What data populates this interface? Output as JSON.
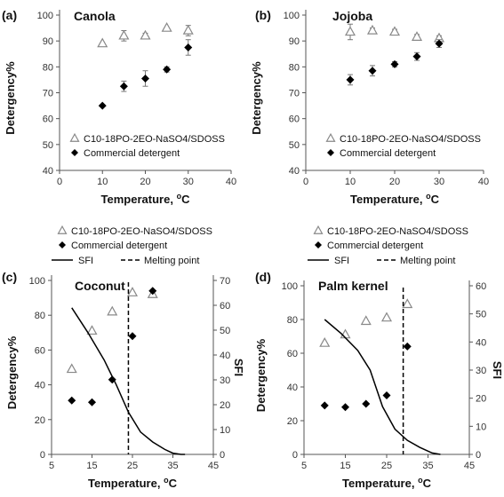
{
  "chart_data": [
    {
      "type": "scatter",
      "panel_label": "(a)",
      "title": "Canola",
      "xlabel": "Temperature, oC",
      "ylabel": "Detergency%",
      "xlim": [
        0,
        40
      ],
      "ylim": [
        40,
        100
      ],
      "xticks": [
        "0",
        "10",
        "20",
        "30",
        "40"
      ],
      "yticks": [
        "40",
        "50",
        "60",
        "70",
        "80",
        "90",
        "100"
      ],
      "legend_position": "lower-center",
      "series": [
        {
          "name": "C10-18PO-2EO-NaSO4/SDOSS",
          "marker": "open-triangle",
          "x": [
            10,
            15,
            20,
            25,
            30
          ],
          "y": [
            89,
            92,
            92,
            95,
            94
          ],
          "err": [
            0,
            2,
            1,
            0,
            2
          ]
        },
        {
          "name": "Commercial detergent",
          "marker": "filled-diamond",
          "x": [
            10,
            15,
            20,
            25,
            30
          ],
          "y": [
            65,
            72.5,
            75.5,
            79,
            87.5
          ],
          "err": [
            0,
            2,
            3,
            1,
            3
          ]
        }
      ]
    },
    {
      "type": "scatter",
      "panel_label": "(b)",
      "title": "Jojoba",
      "xlabel": "Temperature, oC",
      "ylabel": "Detergency%",
      "xlim": [
        0,
        40
      ],
      "ylim": [
        40,
        100
      ],
      "xticks": [
        "0",
        "10",
        "20",
        "30",
        "40"
      ],
      "yticks": [
        "40",
        "50",
        "60",
        "70",
        "80",
        "90",
        "100"
      ],
      "legend_position": "lower-center",
      "series": [
        {
          "name": "C10-18PO-2EO-NaSO4/SDOSS",
          "marker": "open-triangle",
          "x": [
            10,
            15,
            20,
            25,
            30
          ],
          "y": [
            93.5,
            94,
            93.5,
            91.5,
            91
          ],
          "err": [
            3,
            1,
            1,
            1,
            1
          ]
        },
        {
          "name": "Commercial detergent",
          "marker": "filled-diamond",
          "x": [
            10,
            15,
            20,
            25,
            30
          ],
          "y": [
            75,
            78.5,
            81,
            84,
            89
          ],
          "err": [
            2,
            2,
            1,
            1.5,
            1.5
          ]
        }
      ]
    },
    {
      "type": "scatter",
      "panel_label": "(c)",
      "title": "Coconut",
      "xlabel": "Temperature, oC",
      "ylabel": "Detergency%",
      "y2label": "SFI",
      "xlim": [
        5,
        45
      ],
      "ylim": [
        0,
        100
      ],
      "y2lim": [
        0,
        70
      ],
      "xticks": [
        "5",
        "15",
        "25",
        "35",
        "45"
      ],
      "yticks": [
        "0",
        "20",
        "40",
        "60",
        "80",
        "100"
      ],
      "y2ticks": [
        "0",
        "10",
        "20",
        "30",
        "40",
        "50",
        "60",
        "70"
      ],
      "legend_position": "top-left",
      "series": [
        {
          "name": "C10-18PO-2EO-NaSO4/SDOSS",
          "marker": "open-triangle",
          "x": [
            10,
            15,
            20,
            25,
            30
          ],
          "y": [
            49,
            71,
            82,
            93,
            92
          ]
        },
        {
          "name": "Commercial detergent",
          "marker": "filled-diamond",
          "x": [
            10,
            15,
            20,
            25,
            30
          ],
          "y": [
            31,
            30,
            43,
            68,
            94
          ]
        },
        {
          "name": "SFI",
          "line": "solid",
          "axis": "right",
          "x": [
            10,
            14,
            18,
            21,
            24,
            27,
            30,
            33,
            35,
            37,
            38
          ],
          "y": [
            59,
            49,
            38,
            28,
            17,
            9,
            5,
            2,
            0.5,
            0,
            0
          ]
        },
        {
          "name": "Melting point",
          "line": "dashed",
          "vertical_x": 24
        }
      ]
    },
    {
      "type": "scatter",
      "panel_label": "(d)",
      "title": "Palm kernel",
      "xlabel": "Temperature, oC",
      "ylabel": "Detergency%",
      "y2label": "SFI",
      "xlim": [
        5,
        45
      ],
      "ylim": [
        0,
        100
      ],
      "y2lim": [
        0,
        60
      ],
      "xticks": [
        "5",
        "15",
        "25",
        "35",
        "45"
      ],
      "yticks": [
        "0",
        "20",
        "40",
        "60",
        "80",
        "100"
      ],
      "y2ticks": [
        "0",
        "10",
        "20",
        "30",
        "40",
        "50",
        "60"
      ],
      "legend_position": "top-left",
      "series": [
        {
          "name": "C10-18PO-2EO-NaSO4/SDOSS",
          "marker": "open-triangle",
          "x": [
            10,
            15,
            20,
            25,
            30
          ],
          "y": [
            66,
            71,
            79,
            81,
            89
          ]
        },
        {
          "name": "Commercial detergent",
          "marker": "filled-diamond",
          "x": [
            10,
            15,
            20,
            25,
            30
          ],
          "y": [
            29,
            28,
            30,
            35,
            64
          ]
        },
        {
          "name": "SFI",
          "line": "solid",
          "axis": "right",
          "x": [
            10,
            14,
            18,
            21,
            24,
            27,
            30,
            33,
            36,
            38
          ],
          "y": [
            48,
            43,
            37,
            30,
            17,
            9,
            5,
            2.5,
            0.5,
            0
          ]
        },
        {
          "name": "Melting point",
          "line": "dashed",
          "vertical_x": 29
        }
      ]
    }
  ]
}
